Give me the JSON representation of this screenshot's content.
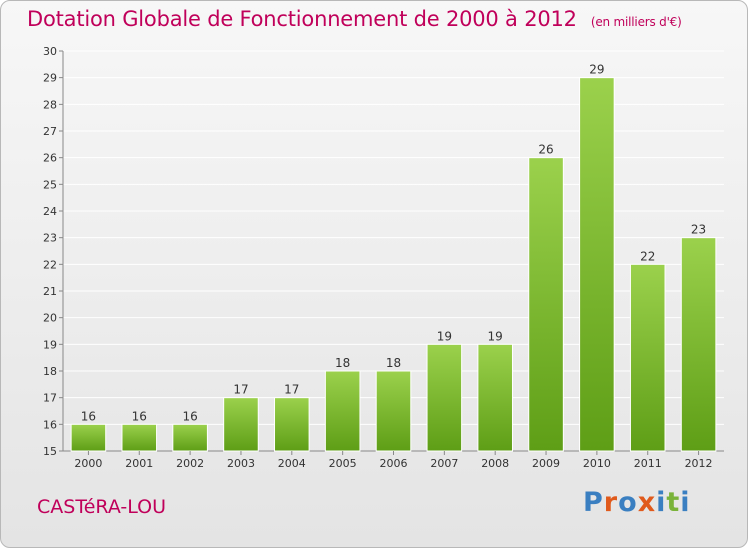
{
  "title": "Dotation Globale de Fonctionnement de 2000 à 2012",
  "subtitle": "(en milliers d'€)",
  "commune": "CASTéRA-LOU",
  "logo": {
    "text": "Proxiti",
    "colors": [
      "#3a7fc1",
      "#e05a1c",
      "#3a7fc1",
      "#e05a1c",
      "#3a7fc1",
      "#7ab33a",
      "#3a7fc1"
    ]
  },
  "colors": {
    "bar_light": "#9bd14c",
    "bar_dark": "#5e9e16",
    "title": "#c0005a",
    "grid": "#ffffff"
  },
  "chart_data": {
    "type": "bar",
    "categories": [
      "2000",
      "2001",
      "2002",
      "2003",
      "2004",
      "2005",
      "2006",
      "2007",
      "2008",
      "2009",
      "2010",
      "2011",
      "2012"
    ],
    "values": [
      16,
      16,
      16,
      17,
      17,
      18,
      18,
      19,
      19,
      26,
      29,
      22,
      23
    ],
    "title": "Dotation Globale de Fonctionnement de 2000 à 2012",
    "xlabel": "",
    "ylabel": "",
    "ylim": [
      15,
      30
    ],
    "yticks": [
      15,
      16,
      17,
      18,
      19,
      20,
      21,
      22,
      23,
      24,
      25,
      26,
      27,
      28,
      29,
      30
    ],
    "grid": true
  }
}
